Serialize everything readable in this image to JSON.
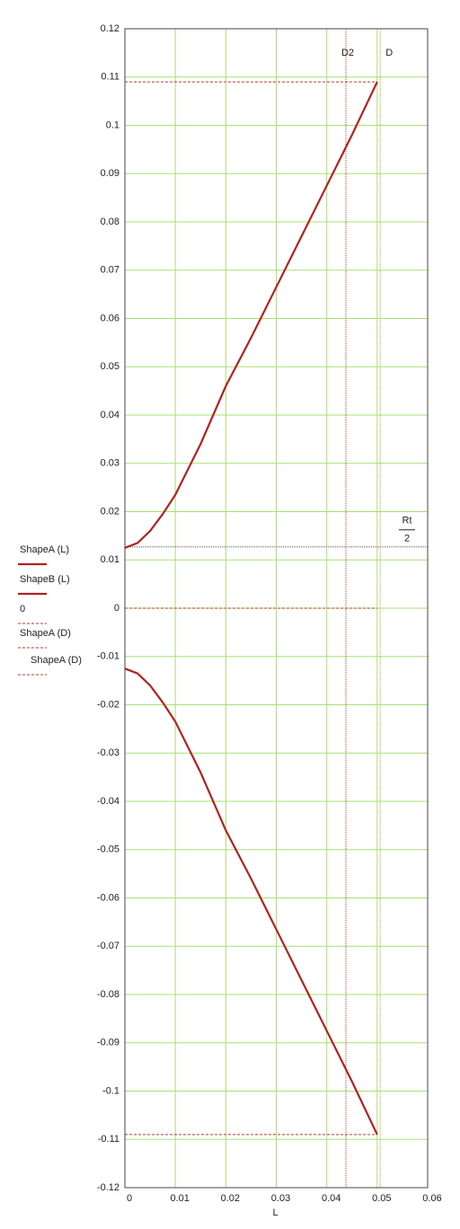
{
  "chart_data": {
    "type": "line",
    "xlabel": "L",
    "xlim": [
      0,
      0.06
    ],
    "xticks": [
      0,
      0.01,
      0.02,
      0.03,
      0.04,
      0.05,
      0.06
    ],
    "ylim": [
      -0.12,
      0.12
    ],
    "yticks": [
      -0.12,
      -0.11,
      -0.1,
      -0.09,
      -0.08,
      -0.07,
      -0.06,
      -0.05,
      -0.04,
      -0.03,
      -0.02,
      -0.01,
      0,
      0.01,
      0.02,
      0.03,
      0.04,
      0.05,
      0.06,
      0.07,
      0.08,
      0.09,
      0.1,
      0.11,
      0.12
    ],
    "grid": true,
    "series": [
      {
        "name": "ShapeA (L)",
        "color": "#b22222",
        "style": "solid",
        "x": [
          0,
          0.0025,
          0.005,
          0.0075,
          0.01,
          0.015,
          0.02,
          0.025,
          0.03,
          0.035,
          0.04,
          0.045,
          0.05
        ],
        "values": [
          0.0125,
          0.0135,
          0.016,
          0.0195,
          0.0235,
          0.034,
          0.046,
          0.056,
          0.0665,
          0.077,
          0.0875,
          0.098,
          0.109
        ]
      },
      {
        "name": "ShapeB (L)",
        "color": "#b22222",
        "style": "solid",
        "x": [
          0,
          0.0025,
          0.005,
          0.0075,
          0.01,
          0.015,
          0.02,
          0.025,
          0.03,
          0.035,
          0.04,
          0.045,
          0.05
        ],
        "values": [
          -0.0125,
          -0.0135,
          -0.016,
          -0.0195,
          -0.0235,
          -0.034,
          -0.046,
          -0.056,
          -0.0665,
          -0.077,
          -0.0875,
          -0.098,
          -0.109
        ]
      },
      {
        "name": "0",
        "color": "#c0392b",
        "style": "dashed",
        "x": [
          0,
          0.05
        ],
        "values": [
          0,
          0
        ]
      },
      {
        "name": "ShapeA (D)",
        "color": "#c0392b",
        "style": "dashed",
        "x": [
          0,
          0.05
        ],
        "values": [
          0.109,
          0.109
        ]
      },
      {
        "name": "ShapeA (D)",
        "color": "#c0392b",
        "style": "dashed",
        "x": [
          0,
          0.05
        ],
        "values": [
          -0.109,
          -0.109
        ]
      }
    ],
    "vmarkers": [
      {
        "label": "D2",
        "x": 0.0438,
        "color": "#c0392b"
      },
      {
        "label": "D",
        "x": 0.0506,
        "color": "#b8a020"
      }
    ],
    "hmarkers": [
      {
        "numerator": "Rt",
        "denominator": "2",
        "y": 0.0127,
        "color": "#555555"
      }
    ]
  }
}
